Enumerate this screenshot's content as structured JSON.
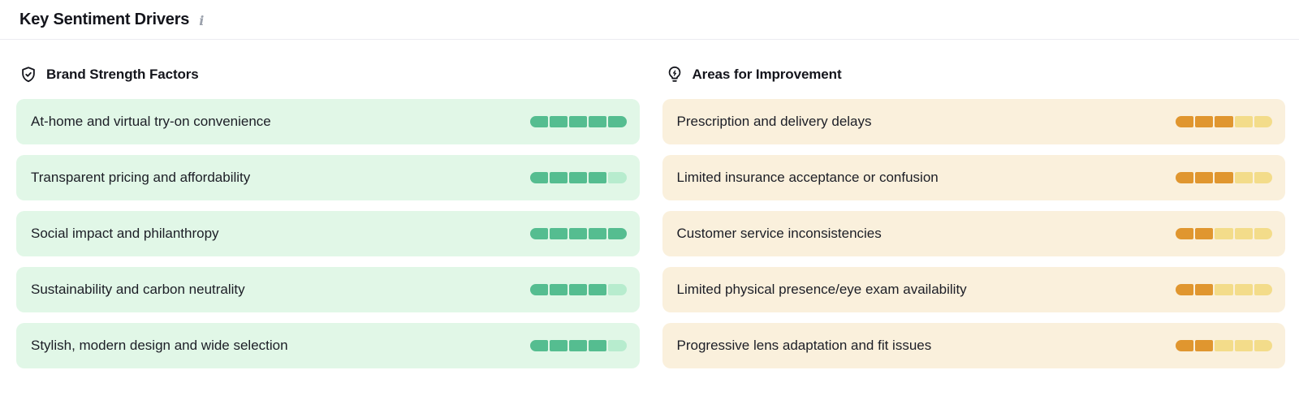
{
  "header": {
    "title": "Key Sentiment Drivers",
    "info_icon": "info-icon"
  },
  "colors": {
    "positive_fill": "#55bd90",
    "positive_empty": "#b7ecce",
    "positive_bg": "#e1f7e7",
    "negative_fill": "#e0962f",
    "negative_empty": "#f3dc8a",
    "negative_bg": "#faf0dc"
  },
  "columns": {
    "strengths": {
      "title": "Brand Strength Factors",
      "icon": "shield-check-icon",
      "items": [
        {
          "label": "At-home and virtual try-on convenience",
          "score": 5,
          "max": 5
        },
        {
          "label": "Transparent pricing and affordability",
          "score": 4,
          "max": 5
        },
        {
          "label": "Social impact and philanthropy",
          "score": 5,
          "max": 5
        },
        {
          "label": "Sustainability and carbon neutrality",
          "score": 4,
          "max": 5
        },
        {
          "label": "Stylish, modern design and wide selection",
          "score": 4,
          "max": 5
        }
      ]
    },
    "improvements": {
      "title": "Areas for Improvement",
      "icon": "lightbulb-icon",
      "items": [
        {
          "label": "Prescription and delivery delays",
          "score": 3,
          "max": 5
        },
        {
          "label": "Limited insurance acceptance or confusion",
          "score": 3,
          "max": 5
        },
        {
          "label": "Customer service inconsistencies",
          "score": 2,
          "max": 5
        },
        {
          "label": "Limited physical presence/eye exam availability",
          "score": 2,
          "max": 5
        },
        {
          "label": "Progressive lens adaptation and fit issues",
          "score": 2,
          "max": 5
        }
      ]
    }
  }
}
